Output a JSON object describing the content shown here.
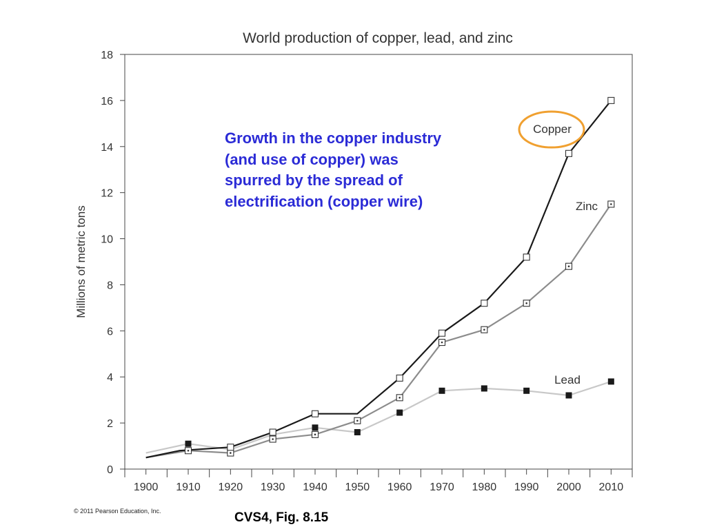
{
  "chart_data": {
    "type": "line",
    "title": "World production of copper, lead, and zinc",
    "xlabel": "",
    "ylabel": "Millions of metric tons",
    "xlim": [
      1895,
      2015
    ],
    "ylim": [
      0,
      18
    ],
    "x_ticks": [
      "1900",
      "1910",
      "1920",
      "1930",
      "1940",
      "1950",
      "1960",
      "1970",
      "1980",
      "1990",
      "2000",
      "2010"
    ],
    "y_ticks": [
      "0",
      "2",
      "4",
      "6",
      "8",
      "10",
      "12",
      "14",
      "16",
      "18"
    ],
    "grid": false,
    "legend": "labels next to series",
    "series": [
      {
        "name": "Copper",
        "color": "#1a1a1a",
        "marker": "open-square",
        "x": [
          1900,
          1908,
          1920,
          1930,
          1940,
          1950,
          1960,
          1970,
          1980,
          1990,
          2000,
          2010
        ],
        "y": [
          0.5,
          0.8,
          0.95,
          1.6,
          2.4,
          2.4,
          3.95,
          5.9,
          7.2,
          9.2,
          13.7,
          16.0
        ],
        "markers_at": [
          1920,
          1930,
          1940,
          1960,
          1970,
          1980,
          1990,
          2000,
          2010
        ]
      },
      {
        "name": "Zinc",
        "color": "#8c8c8c",
        "marker": "dotted-square",
        "x": [
          1900,
          1910,
          1920,
          1930,
          1940,
          1950,
          1960,
          1970,
          1980,
          1990,
          2000,
          2010
        ],
        "y": [
          0.5,
          0.8,
          0.7,
          1.3,
          1.5,
          2.1,
          3.1,
          5.5,
          6.05,
          7.2,
          8.8,
          11.5
        ],
        "markers_at": [
          1910,
          1920,
          1930,
          1940,
          1950,
          1960,
          1970,
          1980,
          1990,
          2000,
          2010
        ]
      },
      {
        "name": "Lead",
        "color": "#c8c8c8",
        "marker": "filled-square",
        "x": [
          1900,
          1910,
          1920,
          1930,
          1940,
          1950,
          1960,
          1970,
          1980,
          1990,
          2000,
          2010
        ],
        "y": [
          0.7,
          1.1,
          0.85,
          1.5,
          1.8,
          1.6,
          2.45,
          3.4,
          3.5,
          3.4,
          3.2,
          3.8
        ],
        "markers_at": [
          1910,
          1920,
          1930,
          1940,
          1950,
          1960,
          1970,
          1980,
          1990,
          2000,
          2010
        ]
      }
    ],
    "highlight": {
      "series": "Copper",
      "style": "ellipse",
      "color": "#f0a030"
    }
  },
  "annotation": {
    "lines": [
      "Growth in the copper industry",
      "(and use of copper) was",
      "spurred by the spread of",
      "electrification (copper wire)"
    ],
    "color": "#2b2bd6"
  },
  "copyright": "© 2011 Pearson Education, Inc.",
  "figure_ref": "CVS4, Fig. 8.15"
}
